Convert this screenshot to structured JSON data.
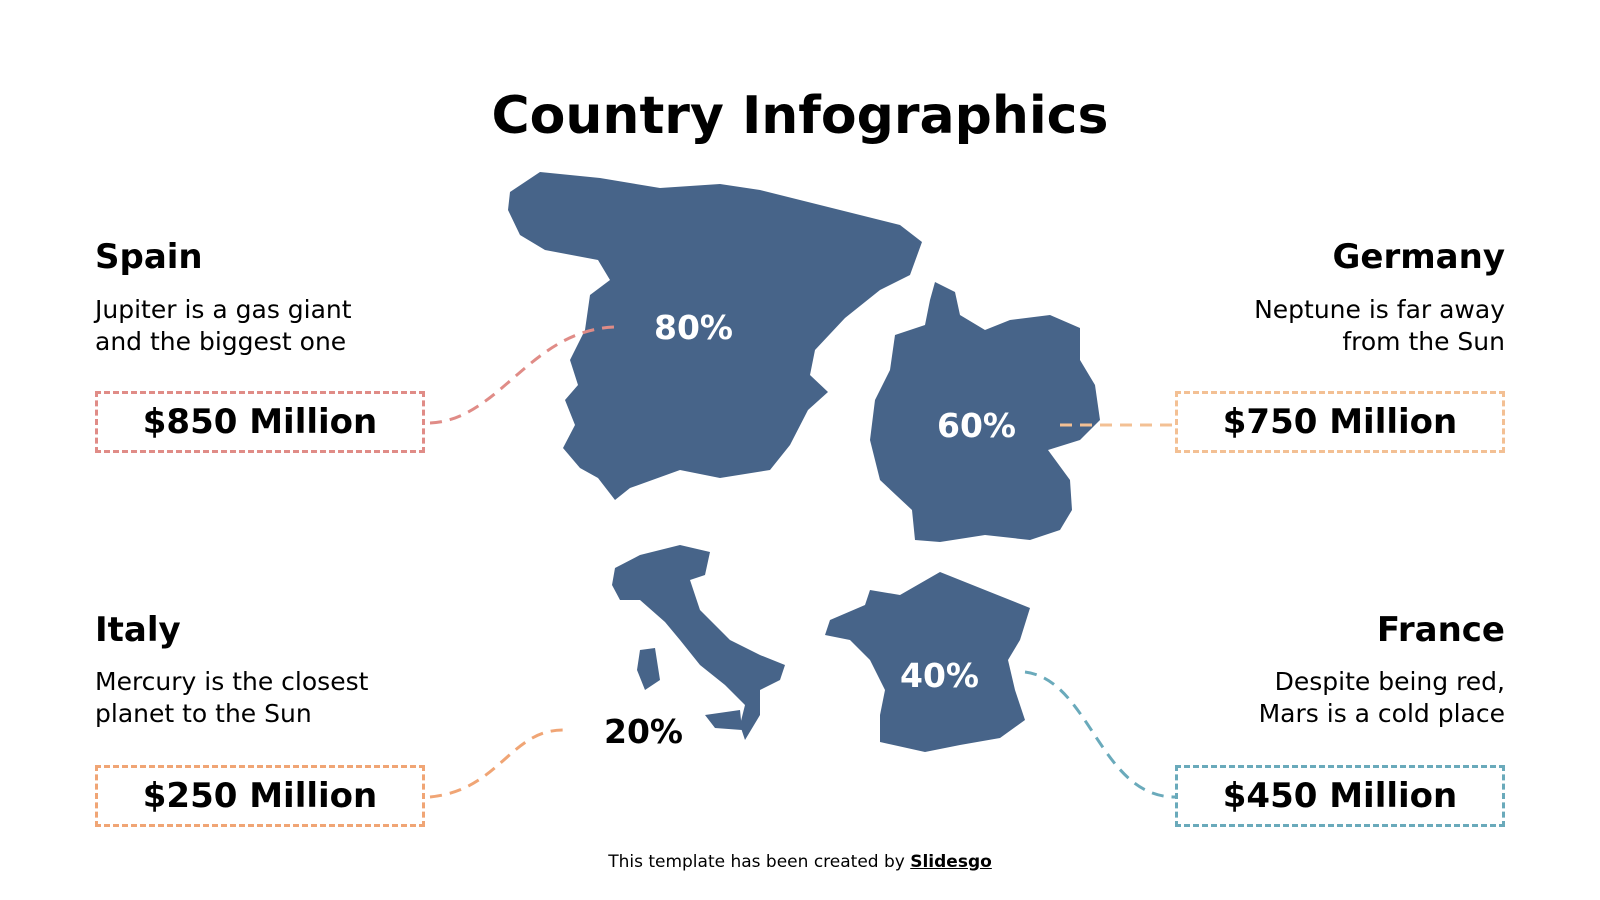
{
  "title": "Country Infographics",
  "map_color": "#476489",
  "countries": [
    {
      "name": "Spain",
      "description": [
        "Jupiter is a gas giant",
        "and the biggest one"
      ],
      "value": "$850 Million",
      "percent": "80%",
      "color": "#e08c87"
    },
    {
      "name": "Germany",
      "description": [
        "Neptune is far away",
        "from the Sun"
      ],
      "value": "$750 Million",
      "percent": "60%",
      "color": "#f3c094"
    },
    {
      "name": "Italy",
      "description": [
        "Mercury is the closest",
        "planet to the Sun"
      ],
      "value": "$250 Million",
      "percent": "20%",
      "color": "#f0a575"
    },
    {
      "name": "France",
      "description": [
        "Despite being red,",
        "Mars is a cold place"
      ],
      "value": "$450 Million",
      "percent": "40%",
      "color": "#6aaabb"
    }
  ],
  "footer": {
    "text": "This template has been created by ",
    "brand": "Slidesgo"
  }
}
